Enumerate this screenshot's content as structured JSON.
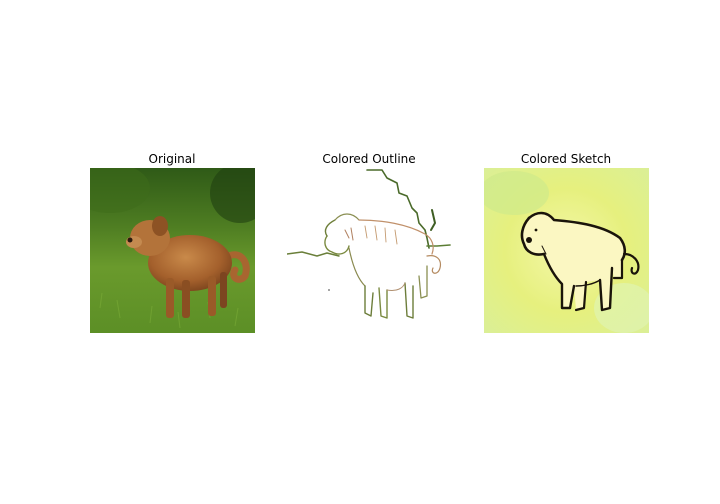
{
  "figure": {
    "panels": [
      {
        "title": "Original"
      },
      {
        "title": "Colored Outline"
      },
      {
        "title": "Colored Sketch"
      }
    ]
  }
}
